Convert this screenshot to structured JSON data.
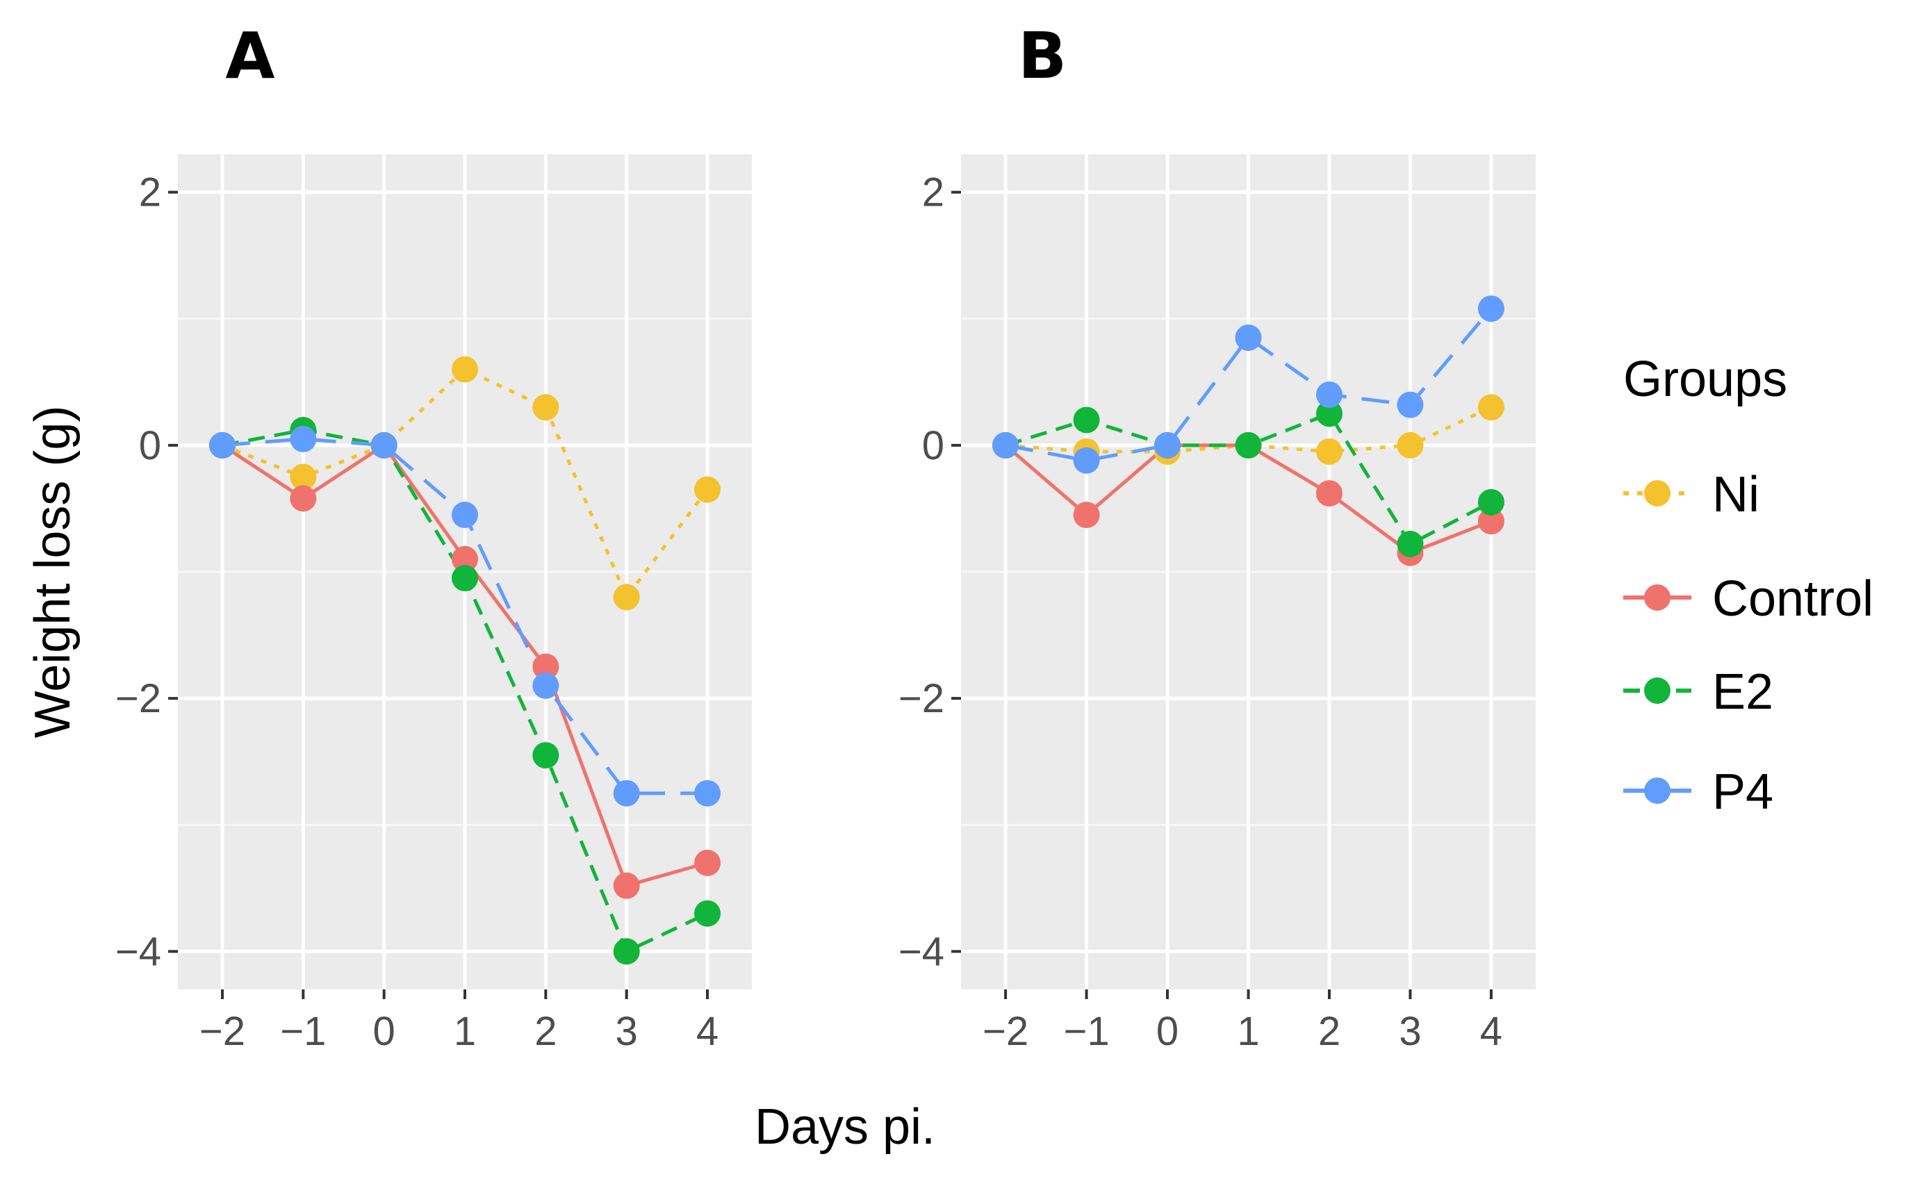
{
  "chart_data": {
    "type": "line",
    "xlabel": "Days pi.",
    "ylabel": "Weight loss (g)",
    "x": [
      -2,
      -1,
      0,
      1,
      2,
      3,
      4
    ],
    "x_tick_labels": [
      "−2",
      "−1",
      "0",
      "1",
      "2",
      "3",
      "4"
    ],
    "y_ticks": [
      2,
      0,
      -2,
      -4
    ],
    "y_tick_labels": [
      "2",
      "0",
      "−2",
      "−4"
    ],
    "xlim": [
      -2.55,
      4.55
    ],
    "ylim": [
      -4.3,
      2.3
    ],
    "legend": {
      "title": "Groups",
      "position": "right",
      "entries": [
        {
          "name": "Ni",
          "color": "#F4C22E",
          "dash": "dotted"
        },
        {
          "name": "Control",
          "color": "#F0726C",
          "dash": "solid"
        },
        {
          "name": "E2",
          "color": "#10B53A",
          "dash": "dashed"
        },
        {
          "name": "P4",
          "color": "#619CFF",
          "dash": "longdash"
        }
      ]
    },
    "panels": [
      {
        "label": "A",
        "series": [
          {
            "name": "Ni",
            "values": [
              0,
              -0.25,
              0,
              0.6,
              0.3,
              -1.2,
              -0.35
            ]
          },
          {
            "name": "Control",
            "values": [
              0,
              -0.42,
              0,
              -0.9,
              -1.75,
              -3.48,
              -3.3
            ]
          },
          {
            "name": "E2",
            "values": [
              0,
              0.12,
              0,
              -1.05,
              -2.45,
              -4.0,
              -3.7
            ]
          },
          {
            "name": "P4",
            "values": [
              0,
              0.05,
              0,
              -0.55,
              -1.9,
              -2.75,
              -2.75
            ]
          }
        ]
      },
      {
        "label": "B",
        "series": [
          {
            "name": "Ni",
            "values": [
              0,
              -0.05,
              -0.05,
              0,
              -0.05,
              0,
              0.3
            ]
          },
          {
            "name": "Control",
            "values": [
              0,
              -0.55,
              0,
              0,
              -0.38,
              -0.85,
              -0.6
            ]
          },
          {
            "name": "E2",
            "values": [
              0,
              0.2,
              0,
              0,
              0.25,
              -0.78,
              -0.45
            ]
          },
          {
            "name": "P4",
            "values": [
              0,
              -0.12,
              0,
              0.85,
              0.4,
              0.32,
              1.08
            ]
          }
        ]
      }
    ]
  }
}
